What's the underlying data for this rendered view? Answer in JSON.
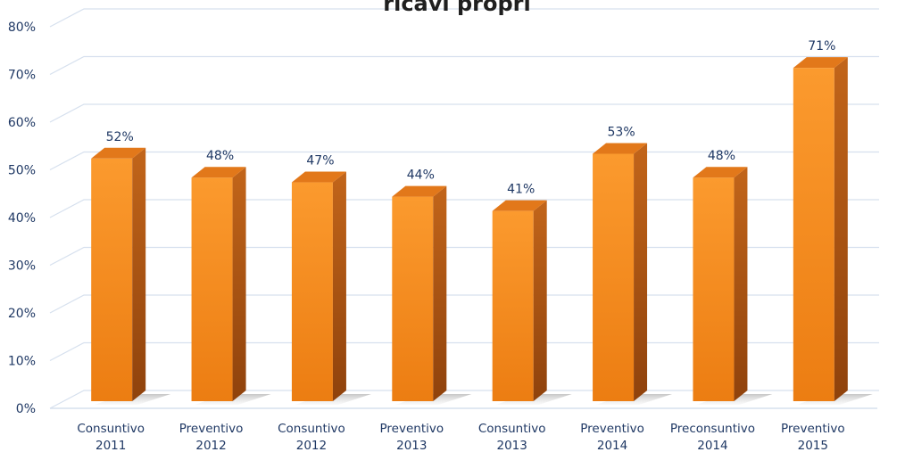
{
  "chart_data": {
    "type": "bar",
    "title": "ricavi propri",
    "categories": [
      [
        "Consuntivo",
        "2011"
      ],
      [
        "Preventivo",
        "2012"
      ],
      [
        "Consuntivo",
        "2012"
      ],
      [
        "Preventivo",
        "2013"
      ],
      [
        "Consuntivo",
        "2013"
      ],
      [
        "Preventivo",
        "2014"
      ],
      [
        "Preconsuntivo",
        "2014"
      ],
      [
        "Preventivo",
        "2015"
      ]
    ],
    "values": [
      52,
      48,
      47,
      44,
      41,
      53,
      48,
      71
    ],
    "data_labels": [
      "52%",
      "48%",
      "47%",
      "44%",
      "41%",
      "53%",
      "48%",
      "71%"
    ],
    "yticks": [
      "0%",
      "10%",
      "20%",
      "30%",
      "40%",
      "50%",
      "60%",
      "70%",
      "80%"
    ],
    "ylim": [
      0,
      80
    ],
    "grid": true,
    "legend": "none",
    "colors": {
      "bar_front": "#f7921e",
      "bar_side": "#b3560f",
      "bar_top": "#e2781a",
      "grid": "#d6e0ee",
      "text": "#1f3864"
    }
  }
}
